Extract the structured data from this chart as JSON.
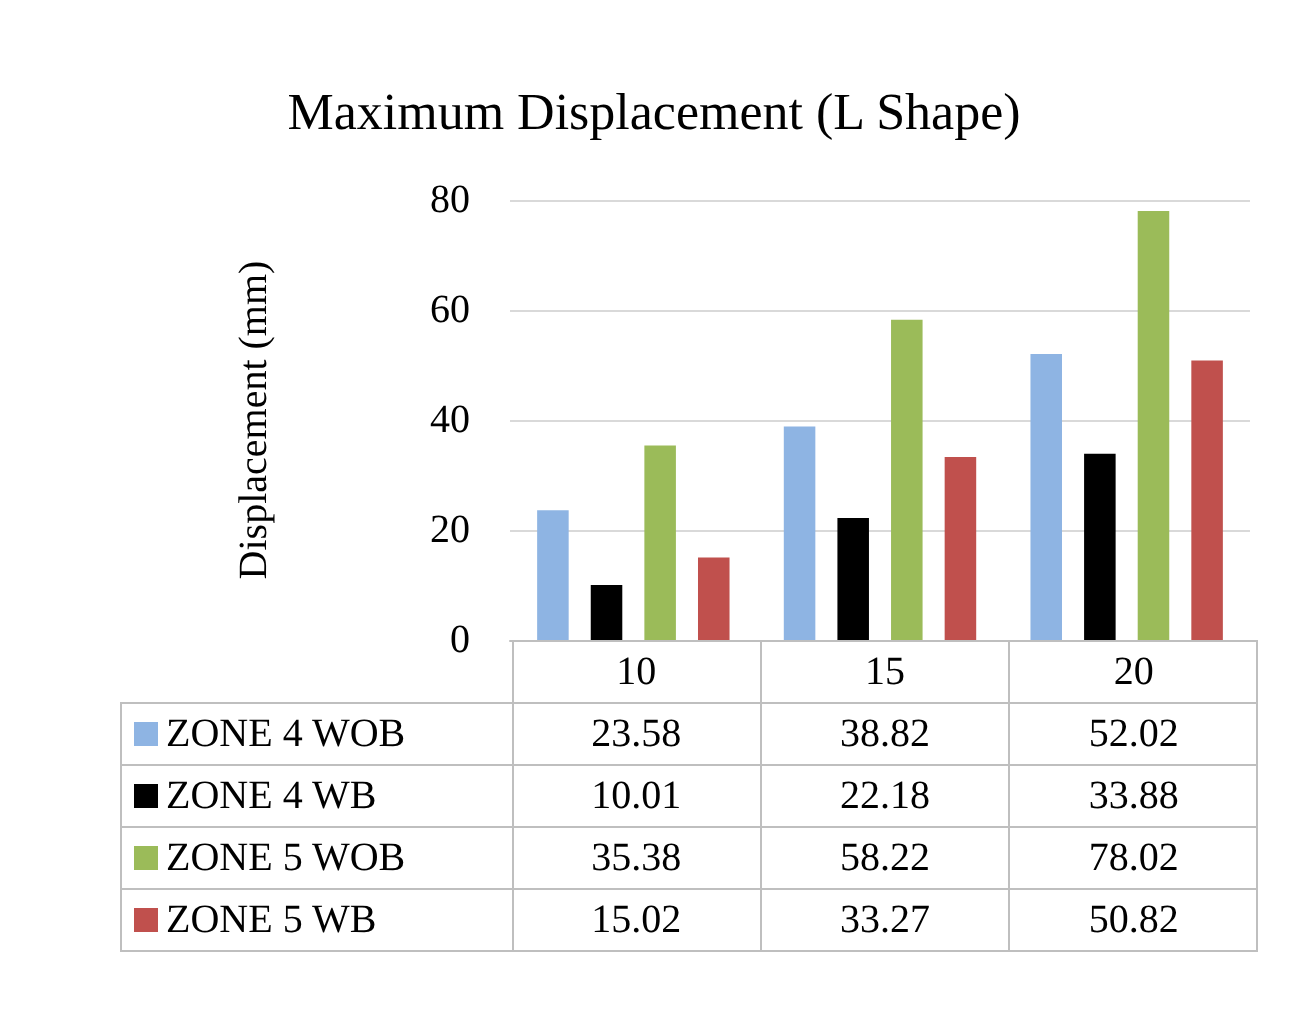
{
  "chart_data": {
    "type": "bar",
    "title": "Maximum Displacement (L Shape)",
    "ylabel": "Displacement (mm)",
    "categories": [
      "10",
      "15",
      "20"
    ],
    "series": [
      {
        "name": "ZONE 4 WOB",
        "color": "#8eb4e3",
        "values": [
          23.58,
          38.82,
          52.02
        ]
      },
      {
        "name": "ZONE 4 WB",
        "color": "#000000",
        "values": [
          10.01,
          22.18,
          33.88
        ]
      },
      {
        "name": "ZONE 5 WOB",
        "color": "#9bbb59",
        "values": [
          35.38,
          58.22,
          78.02
        ]
      },
      {
        "name": "ZONE 5 WB",
        "color": "#c0504d",
        "values": [
          15.02,
          33.27,
          50.82
        ]
      }
    ],
    "ylim": [
      0,
      80
    ],
    "yticks": [
      0,
      20,
      40,
      60,
      80
    ],
    "grid": "y",
    "legend": "bottom",
    "data_labels": true
  }
}
